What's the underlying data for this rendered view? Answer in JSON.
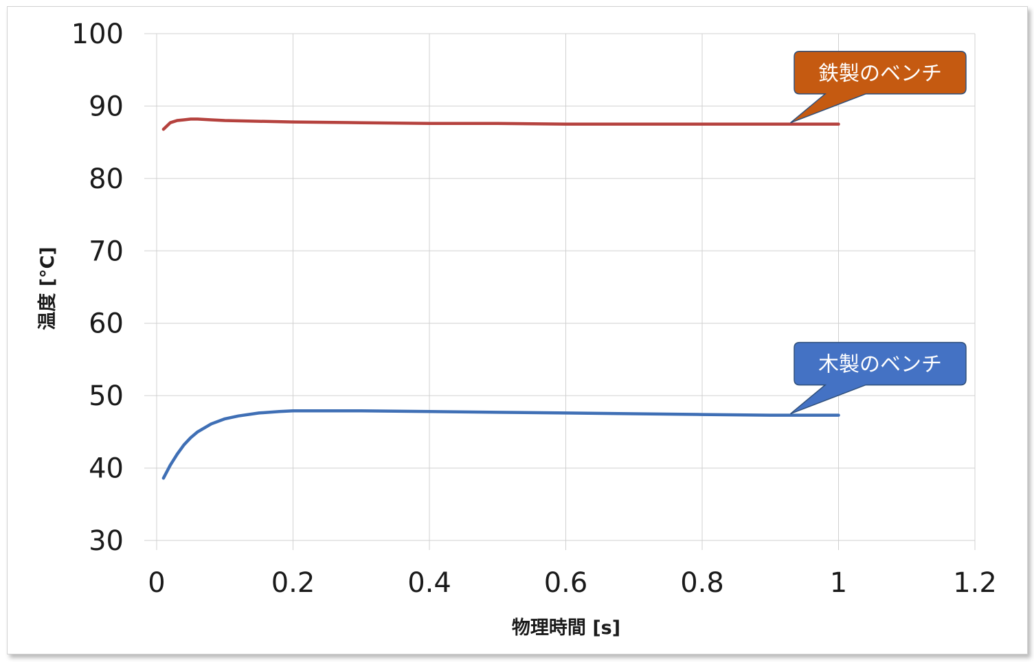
{
  "chart_data": {
    "type": "line",
    "title": "",
    "xlabel": "物理時間 [s]",
    "ylabel": "温度 [°C]",
    "xlim": [
      0,
      1.2
    ],
    "ylim": [
      30,
      100
    ],
    "x_ticks": [
      "0",
      "0.2",
      "0.4",
      "0.6",
      "0.8",
      "1",
      "1.2"
    ],
    "y_ticks": [
      "30",
      "40",
      "50",
      "60",
      "70",
      "80",
      "90",
      "100"
    ],
    "grid": true,
    "legend": "none",
    "series": [
      {
        "name": "鉄製のベンチ",
        "color": "#b5423e",
        "label_color": "#c55a11",
        "x": [
          0.01,
          0.02,
          0.03,
          0.04,
          0.05,
          0.06,
          0.08,
          0.1,
          0.15,
          0.2,
          0.3,
          0.4,
          0.5,
          0.6,
          0.7,
          0.8,
          0.9,
          1.0
        ],
        "y": [
          86.8,
          87.7,
          88.0,
          88.1,
          88.2,
          88.2,
          88.1,
          88.0,
          87.9,
          87.8,
          87.7,
          87.6,
          87.6,
          87.5,
          87.5,
          87.5,
          87.5,
          87.5
        ]
      },
      {
        "name": "木製のベンチ",
        "color": "#3f6fb5",
        "label_color": "#4472c4",
        "x": [
          0.01,
          0.02,
          0.03,
          0.04,
          0.05,
          0.06,
          0.08,
          0.1,
          0.12,
          0.15,
          0.18,
          0.2,
          0.25,
          0.3,
          0.4,
          0.5,
          0.6,
          0.7,
          0.8,
          0.9,
          1.0
        ],
        "y": [
          38.6,
          40.4,
          41.9,
          43.2,
          44.2,
          45.0,
          46.1,
          46.8,
          47.2,
          47.6,
          47.8,
          47.9,
          47.9,
          47.9,
          47.8,
          47.7,
          47.6,
          47.5,
          47.4,
          47.3,
          47.3
        ]
      }
    ]
  }
}
